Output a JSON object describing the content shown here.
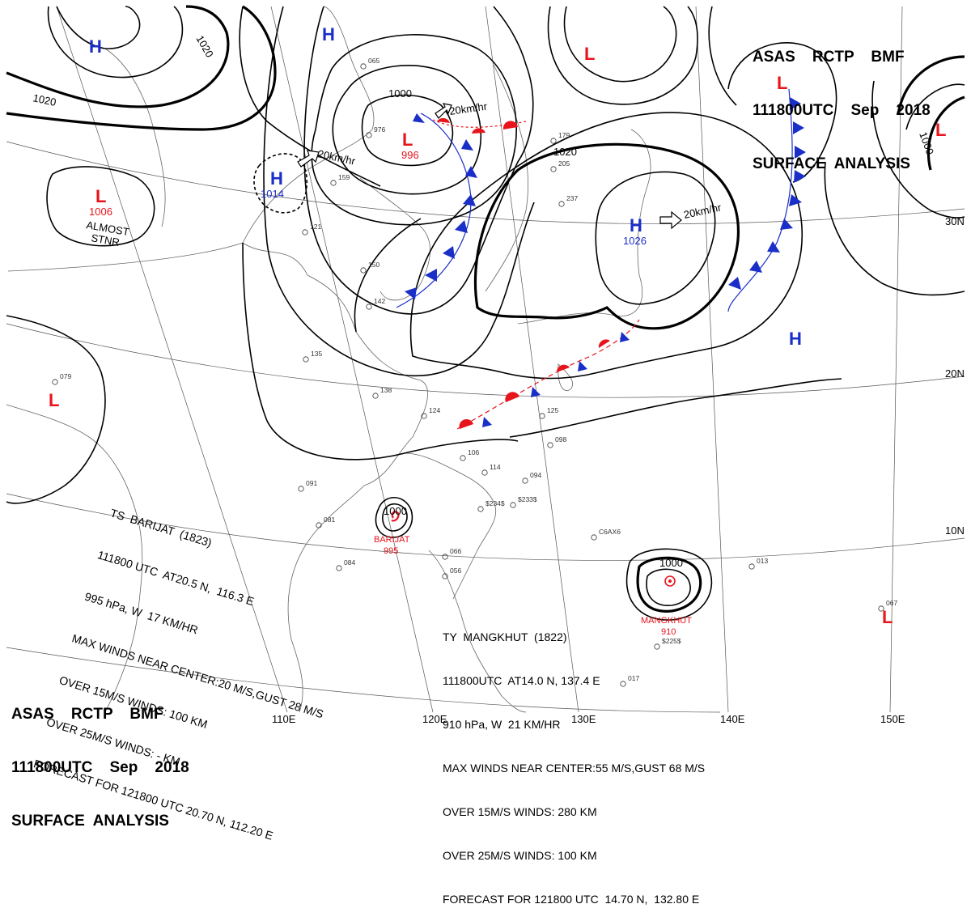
{
  "header_top": {
    "line1": "ASAS    RCTP    BMF",
    "line2": "111800UTC    Sep    2018",
    "line3": "SURFACE  ANALYSIS"
  },
  "header_bottom": {
    "line1": "ASAS    RCTP    BMF",
    "line2": "111800UTC    Sep    2018",
    "line3": "SURFACE  ANALYSIS"
  },
  "lat_labels": [
    "30N",
    "20N",
    "10N"
  ],
  "lon_labels": [
    "110E",
    "120E",
    "130E",
    "140E",
    "150E"
  ],
  "isobar_labels": [
    "1020",
    "1020",
    "1000",
    "1020",
    "1000",
    "1000",
    "1000"
  ],
  "pressure_systems": [
    {
      "type": "H",
      "color": "#1a2ec8"
    },
    {
      "type": "H",
      "color": "#1a2ec8"
    },
    {
      "type": "L",
      "color": "#e8141c"
    },
    {
      "type": "L",
      "color": "#e8141c",
      "pressure": "996"
    },
    {
      "type": "L",
      "color": "#e8141c",
      "pressure": "1006"
    },
    {
      "type": "H",
      "color": "#1a2ec8",
      "pressure": "1014"
    },
    {
      "type": "L",
      "color": "#e8141c"
    },
    {
      "type": "H",
      "color": "#1a2ec8",
      "pressure": "1026"
    },
    {
      "type": "L",
      "color": "#e8141c"
    },
    {
      "type": "L",
      "color": "#e8141c"
    },
    {
      "type": "H",
      "color": "#1a2ec8"
    },
    {
      "type": "L",
      "color": "#e8141c"
    }
  ],
  "annotations": {
    "almost_stnr_1": "ALMOST",
    "almost_stnr_2": "STNR",
    "motion_1": "20km/hr",
    "motion_2": "20km/hr",
    "motion_3": "20km/hr"
  },
  "typhoons": {
    "barijat_name": "BARIJAT",
    "barijat_pressure": "995",
    "mangkhut_name": "MANGKHUT",
    "mangkhut_pressure": "910"
  },
  "storm_barijat": [
    "TS  BARIJAT  (1823)",
    "111800 UTC  AT20.5 N,  116.3 E",
    "995 hPa, W  17 KM/HR",
    "MAX WINDS NEAR CENTER:20 M/S,GUST 28 M/S",
    "OVER 15M/S WINDS: 100 KM",
    "OVER 25M/S WINDS: - KM",
    "FORECAST FOR 121800 UTC 20.70 N, 112.20 E"
  ],
  "storm_mangkhut": [
    "TY  MANGKHUT  (1822)",
    "111800UTC  AT14.0 N, 137.4 E",
    "910 hPa, W  21 KM/HR",
    "MAX WINDS NEAR CENTER:55 M/S,GUST 68 M/S",
    "OVER 15M/S WINDS: 280 KM",
    "OVER 25M/S WINDS: 100 KM",
    "FORECAST FOR 121800 UTC  14.70 N,  132.80 E"
  ],
  "station_samples": [
    "065",
    "976",
    "179",
    "205",
    "237",
    "159",
    "121",
    "150",
    "142",
    "135",
    "138",
    "124",
    "125",
    "098",
    "106",
    "114",
    "094",
    "091",
    "081",
    "084",
    "066",
    "056",
    "079",
    "067",
    "013",
    "017",
    "$225$",
    "$233$",
    "$234$",
    "C6AX6"
  ]
}
